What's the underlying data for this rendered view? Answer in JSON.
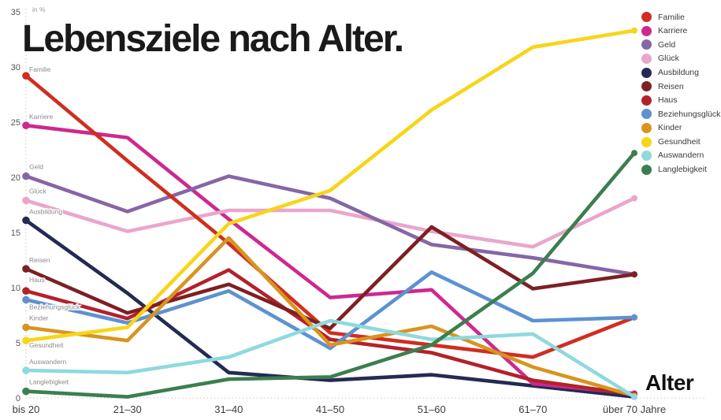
{
  "page": {
    "title": "Lebensziele nach Alter.",
    "unit_label": "in %",
    "xaxis_label": "Alter"
  },
  "chart_data": {
    "type": "line",
    "title": "Lebensziele nach Alter.",
    "xlabel": "Alter",
    "ylabel": "in %",
    "ylim": [
      0,
      35
    ],
    "yticks": [
      0,
      5,
      10,
      15,
      20,
      25,
      30,
      35
    ],
    "grid": "dotted x and y axis lines only",
    "legend_position": "top-right",
    "categories": [
      "bis 20",
      "21–30",
      "31–40",
      "41–50",
      "51–60",
      "61–70",
      "über 70 Jahre"
    ],
    "series": [
      {
        "name": "Familie",
        "color": "#cf2e21",
        "values": [
          29.2,
          21.5,
          14.0,
          5.9,
          4.8,
          3.7,
          7.3
        ]
      },
      {
        "name": "Karriere",
        "color": "#cd2990",
        "values": [
          24.7,
          23.6,
          16.2,
          9.1,
          9.8,
          1.3,
          0.4
        ]
      },
      {
        "name": "Geld",
        "color": "#8566a6",
        "values": [
          20.1,
          16.9,
          20.1,
          18.1,
          13.9,
          12.7,
          11.2
        ]
      },
      {
        "name": "Glück",
        "color": "#eaa6ca",
        "values": [
          17.9,
          15.1,
          17.0,
          17.0,
          15.1,
          13.7,
          18.1
        ]
      },
      {
        "name": "Ausbildung",
        "color": "#252a52",
        "values": [
          16.1,
          9.5,
          2.3,
          1.6,
          2.1,
          1.1,
          0.1
        ]
      },
      {
        "name": "Reisen",
        "color": "#7d2022",
        "values": [
          11.7,
          7.7,
          10.3,
          6.3,
          15.5,
          9.9,
          11.2
        ]
      },
      {
        "name": "Haus",
        "color": "#b2222a",
        "values": [
          9.7,
          7.2,
          11.6,
          5.3,
          4.1,
          1.6,
          0.3
        ]
      },
      {
        "name": "Beziehungsglück",
        "color": "#5d92d1",
        "values": [
          8.9,
          6.8,
          9.7,
          4.5,
          11.4,
          7.0,
          7.3
        ]
      },
      {
        "name": "Kinder",
        "color": "#d9941f",
        "values": [
          6.4,
          5.2,
          14.5,
          4.8,
          6.5,
          2.8,
          0.2
        ]
      },
      {
        "name": "Gesundheit",
        "color": "#f7d518",
        "values": [
          5.2,
          6.4,
          15.8,
          18.8,
          26.1,
          31.8,
          33.3
        ]
      },
      {
        "name": "Auswandern",
        "color": "#8fd9de",
        "values": [
          2.5,
          2.3,
          3.7,
          7.0,
          5.3,
          5.8,
          0.1
        ]
      },
      {
        "name": "Langlebigkeit",
        "color": "#3d7e4f",
        "values": [
          0.6,
          0.1,
          1.7,
          1.9,
          4.8,
          11.3,
          22.2
        ]
      }
    ]
  }
}
